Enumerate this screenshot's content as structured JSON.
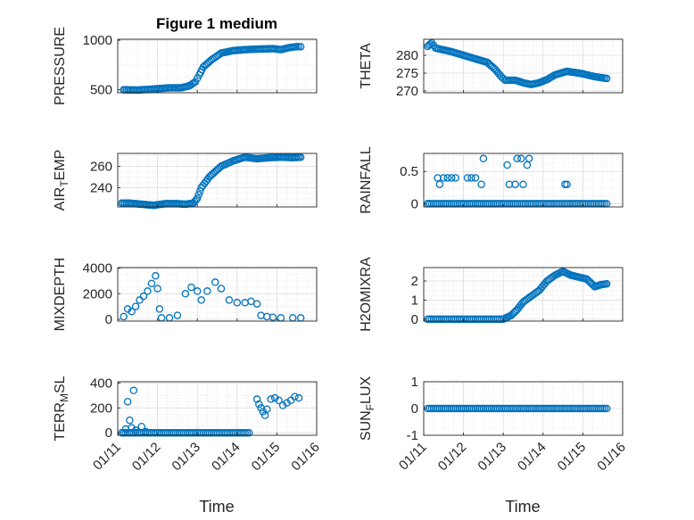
{
  "figure": {
    "title": "Figure 1 medium",
    "xlabel": "Time",
    "x_tick_labels": [
      "01/11",
      "01/12",
      "01/13",
      "01/14",
      "01/15",
      "01/16"
    ]
  },
  "chart_data": [
    {
      "type": "scatter",
      "name": "PRESSURE",
      "ylabel": "PRESSURE",
      "ylim": [
        470,
        1010
      ],
      "yticks": [
        500,
        1000
      ],
      "ytick_labels": [
        "500",
        "1000"
      ],
      "xlim": [
        0,
        5
      ],
      "grid": true,
      "marker": "open-circle",
      "color": "#0072BD",
      "points": [
        [
          0.15,
          500
        ],
        [
          0.5,
          497
        ],
        [
          1.0,
          510
        ],
        [
          1.3,
          520
        ],
        [
          1.6,
          520
        ],
        [
          1.8,
          540
        ],
        [
          1.95,
          580
        ],
        [
          2.05,
          650
        ],
        [
          2.15,
          730
        ],
        [
          2.35,
          800
        ],
        [
          2.6,
          870
        ],
        [
          2.9,
          895
        ],
        [
          3.2,
          905
        ],
        [
          3.5,
          910
        ],
        [
          3.9,
          915
        ],
        [
          4.1,
          905
        ],
        [
          4.3,
          925
        ],
        [
          4.5,
          935
        ],
        [
          4.6,
          935
        ]
      ]
    },
    {
      "type": "scatter",
      "name": "THETA",
      "ylabel": "THETA",
      "ylim": [
        269.5,
        284.5
      ],
      "yticks": [
        270,
        275,
        280
      ],
      "ytick_labels": [
        "270",
        "275",
        "280"
      ],
      "xlim": [
        0,
        5
      ],
      "grid": true,
      "marker": "open-circle",
      "color": "#0072BD",
      "points": [
        [
          0.1,
          282.5
        ],
        [
          0.2,
          283.5
        ],
        [
          0.3,
          282
        ],
        [
          0.5,
          281.5
        ],
        [
          0.7,
          281
        ],
        [
          1.0,
          280
        ],
        [
          1.3,
          279
        ],
        [
          1.6,
          278
        ],
        [
          1.8,
          276
        ],
        [
          1.95,
          274
        ],
        [
          2.05,
          273
        ],
        [
          2.3,
          273
        ],
        [
          2.5,
          272.3
        ],
        [
          2.7,
          271.8
        ],
        [
          2.9,
          272.3
        ],
        [
          3.1,
          273.2
        ],
        [
          3.3,
          274.5
        ],
        [
          3.6,
          275.5
        ],
        [
          3.9,
          275
        ],
        [
          4.0,
          274.8
        ],
        [
          4.3,
          274
        ],
        [
          4.6,
          273.5
        ]
      ]
    },
    {
      "type": "scatter",
      "name": "AIR_TEMP",
      "ylabel": "AIR_TEMP",
      "ylim": [
        222,
        272
      ],
      "yticks": [
        240,
        260
      ],
      "ytick_labels": [
        "240",
        "260"
      ],
      "xlim": [
        0,
        5
      ],
      "grid": true,
      "marker": "open-circle",
      "color": "#0072BD",
      "points": [
        [
          0.1,
          225.5
        ],
        [
          0.3,
          225.5
        ],
        [
          0.6,
          224.5
        ],
        [
          0.9,
          223.5
        ],
        [
          1.2,
          225
        ],
        [
          1.5,
          225
        ],
        [
          1.7,
          224.5
        ],
        [
          1.9,
          225.5
        ],
        [
          2.0,
          230
        ],
        [
          2.1,
          240
        ],
        [
          2.3,
          250
        ],
        [
          2.6,
          260
        ],
        [
          2.9,
          265
        ],
        [
          3.2,
          268.5
        ],
        [
          3.5,
          267
        ],
        [
          3.8,
          268
        ],
        [
          4.1,
          268.5
        ],
        [
          4.4,
          268
        ],
        [
          4.6,
          268.5
        ]
      ]
    },
    {
      "type": "scatter",
      "name": "RAINFALL",
      "ylabel": "RAINFALL",
      "ylim": [
        -0.05,
        0.78
      ],
      "yticks": [
        0,
        0.5
      ],
      "ytick_labels": [
        "0",
        "0.5"
      ],
      "xlim": [
        0,
        5
      ],
      "grid": true,
      "marker": "open-circle",
      "color": "#0072BD",
      "zero_runs": [
        [
          0.1,
          4.6
        ]
      ],
      "points": [
        [
          0.1,
          0
        ],
        [
          0.35,
          0.4
        ],
        [
          0.4,
          0.3
        ],
        [
          0.5,
          0.4
        ],
        [
          0.6,
          0.4
        ],
        [
          0.7,
          0.4
        ],
        [
          0.8,
          0.4
        ],
        [
          1.1,
          0.4
        ],
        [
          1.2,
          0.4
        ],
        [
          1.3,
          0.4
        ],
        [
          1.45,
          0.3
        ],
        [
          1.5,
          0.7
        ],
        [
          2.1,
          0.6
        ],
        [
          2.15,
          0.3
        ],
        [
          2.3,
          0.3
        ],
        [
          2.35,
          0.7
        ],
        [
          2.45,
          0.7
        ],
        [
          2.5,
          0.3
        ],
        [
          2.6,
          0.6
        ],
        [
          2.65,
          0.7
        ],
        [
          1.35,
          0
        ],
        [
          3.55,
          0.3
        ],
        [
          3.6,
          0.3
        ]
      ]
    },
    {
      "type": "scatter",
      "name": "MIXDEPTH",
      "ylabel": "MIXDEPTH",
      "ylim": [
        -150,
        4050
      ],
      "yticks": [
        0,
        2000,
        4000
      ],
      "ytick_labels": [
        "0",
        "2000",
        "4000"
      ],
      "xlim": [
        0,
        5
      ],
      "grid": true,
      "marker": "open-circle",
      "color": "#0072BD",
      "points": [
        [
          0.15,
          200
        ],
        [
          0.25,
          800
        ],
        [
          0.35,
          600
        ],
        [
          0.45,
          1000
        ],
        [
          0.55,
          1500
        ],
        [
          0.65,
          1800
        ],
        [
          0.75,
          2200
        ],
        [
          0.85,
          2800
        ],
        [
          0.95,
          3400
        ],
        [
          1.0,
          2400
        ],
        [
          1.05,
          800
        ],
        [
          1.1,
          100
        ],
        [
          1.3,
          100
        ],
        [
          1.5,
          300
        ],
        [
          1.7,
          2000
        ],
        [
          1.85,
          2500
        ],
        [
          2.0,
          2200
        ],
        [
          2.1,
          1500
        ],
        [
          2.25,
          2200
        ],
        [
          2.45,
          2900
        ],
        [
          2.6,
          2400
        ],
        [
          2.8,
          1500
        ],
        [
          3.0,
          1300
        ],
        [
          3.2,
          1300
        ],
        [
          3.35,
          1400
        ],
        [
          3.5,
          1200
        ],
        [
          3.6,
          300
        ],
        [
          3.75,
          200
        ],
        [
          3.9,
          150
        ],
        [
          4.1,
          100
        ],
        [
          4.4,
          100
        ],
        [
          4.6,
          100
        ]
      ]
    },
    {
      "type": "scatter",
      "name": "H2OMIXRA",
      "ylabel": "H2OMIXRA",
      "ylim": [
        -0.1,
        2.7
      ],
      "yticks": [
        0,
        1,
        2
      ],
      "ytick_labels": [
        "0",
        "1",
        "2"
      ],
      "xlim": [
        0,
        5
      ],
      "grid": true,
      "marker": "open-circle",
      "color": "#0072BD",
      "zero_runs": [
        [
          0.1,
          2.0
        ]
      ],
      "points": [
        [
          2.05,
          0.05
        ],
        [
          2.2,
          0.2
        ],
        [
          2.35,
          0.5
        ],
        [
          2.5,
          0.9
        ],
        [
          2.7,
          1.2
        ],
        [
          2.9,
          1.5
        ],
        [
          3.1,
          2.0
        ],
        [
          3.3,
          2.3
        ],
        [
          3.5,
          2.5
        ],
        [
          3.7,
          2.3
        ],
        [
          3.9,
          2.2
        ],
        [
          4.1,
          2.1
        ],
        [
          4.3,
          1.7
        ],
        [
          4.45,
          1.8
        ],
        [
          4.6,
          1.85
        ]
      ]
    },
    {
      "type": "scatter",
      "name": "TERR_MSL",
      "ylabel": "TERR_MSL",
      "ylim": [
        -20,
        410
      ],
      "yticks": [
        0,
        200,
        400
      ],
      "ytick_labels": [
        "0",
        "200",
        "400"
      ],
      "xlim": [
        0,
        5
      ],
      "grid": true,
      "marker": "open-circle",
      "color": "#0072BD",
      "zero_runs": [
        [
          0.1,
          3.3
        ]
      ],
      "points": [
        [
          0.15,
          0
        ],
        [
          0.2,
          30
        ],
        [
          0.25,
          250
        ],
        [
          0.3,
          100
        ],
        [
          0.35,
          40
        ],
        [
          0.4,
          340
        ],
        [
          0.45,
          20
        ],
        [
          0.6,
          50
        ],
        [
          0.7,
          10
        ],
        [
          3.5,
          270
        ],
        [
          3.55,
          230
        ],
        [
          3.6,
          200
        ],
        [
          3.65,
          170
        ],
        [
          3.7,
          140
        ],
        [
          3.75,
          190
        ],
        [
          3.85,
          270
        ],
        [
          3.95,
          280
        ],
        [
          4.05,
          260
        ],
        [
          4.15,
          220
        ],
        [
          4.25,
          240
        ],
        [
          4.35,
          260
        ],
        [
          4.45,
          290
        ],
        [
          4.55,
          280
        ]
      ]
    },
    {
      "type": "scatter",
      "name": "SUN_FLUX",
      "ylabel": "SUN_FLUX",
      "ylim": [
        -1,
        1
      ],
      "yticks": [
        -1,
        0,
        1
      ],
      "ytick_labels": [
        "-1",
        "0",
        "1"
      ],
      "xlim": [
        0,
        5
      ],
      "grid": true,
      "marker": "open-circle",
      "color": "#0072BD",
      "zero_runs": [
        [
          0.1,
          4.6
        ]
      ],
      "points": []
    }
  ]
}
